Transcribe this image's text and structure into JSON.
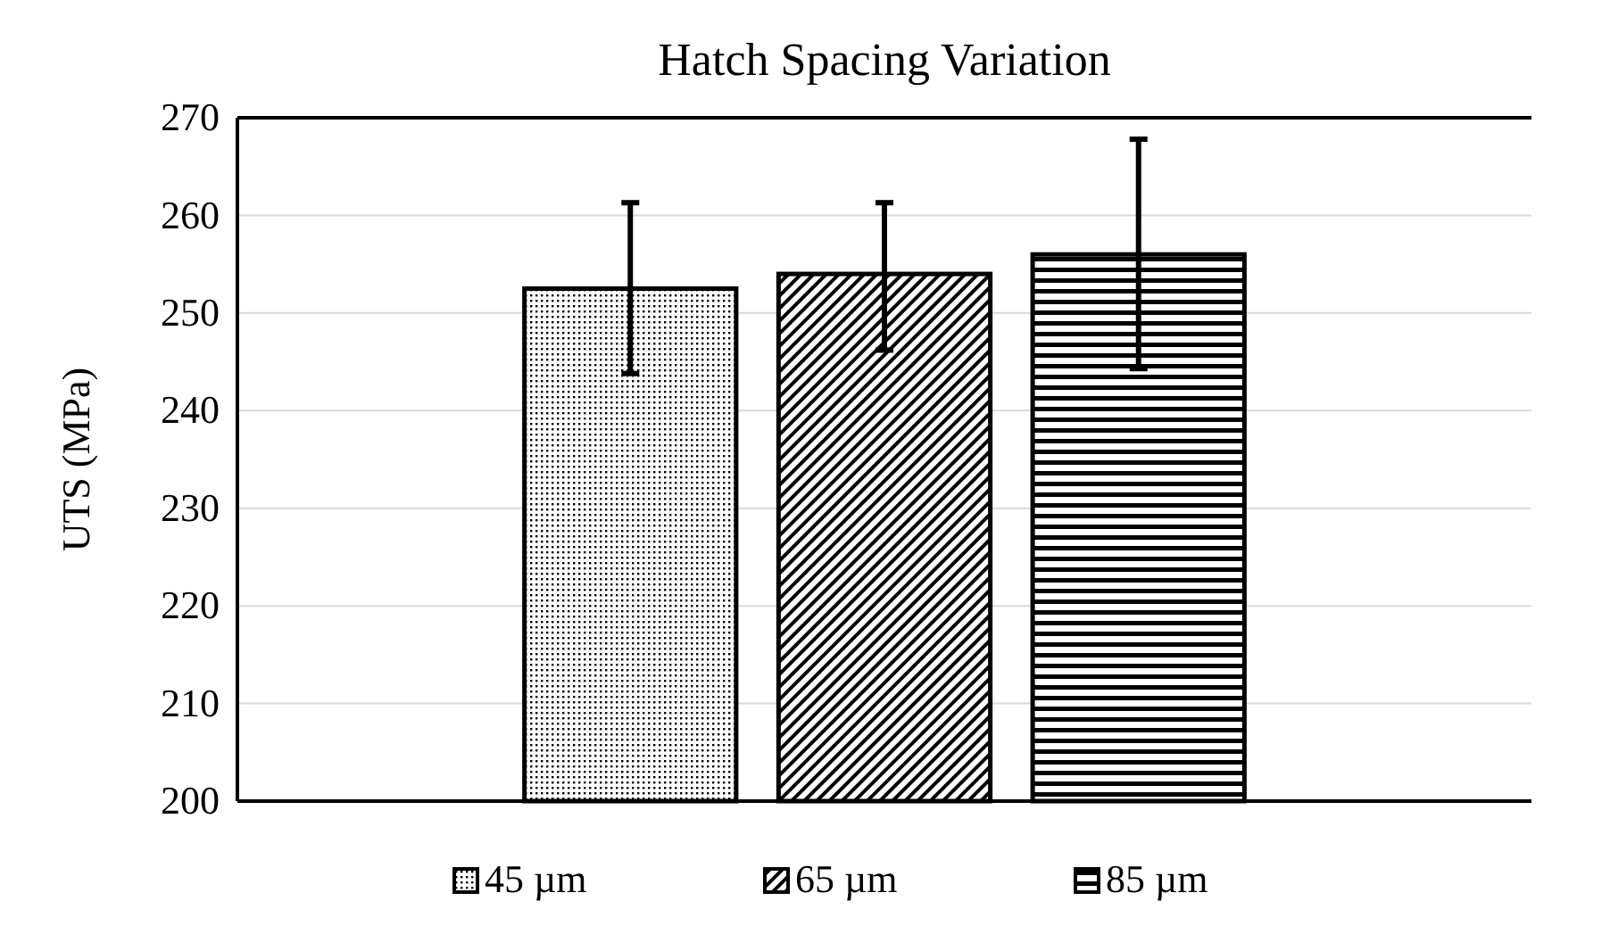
{
  "chart_data": {
    "type": "bar",
    "title": "Hatch Spacing Variation",
    "ylabel": "UTS (MPa)",
    "categories": [
      null
    ],
    "series": [
      {
        "name": "45 µm",
        "color": "#000000",
        "values": [
          252.5
        ],
        "errors": [
          [
            243.8,
            261.3
          ]
        ]
      },
      {
        "name": "65 µm",
        "color": "#000000",
        "values": [
          254
        ],
        "errors": [
          [
            246.2,
            261.3
          ]
        ]
      },
      {
        "name": "85 µm",
        "color": "#000000",
        "values": [
          256
        ],
        "errors": [
          [
            244.3,
            267.8
          ]
        ]
      }
    ],
    "ylim": [
      200,
      270
    ],
    "yticks": [
      200,
      210,
      220,
      230,
      240,
      250,
      260,
      270
    ],
    "grid": "y",
    "legend": "bottom"
  }
}
